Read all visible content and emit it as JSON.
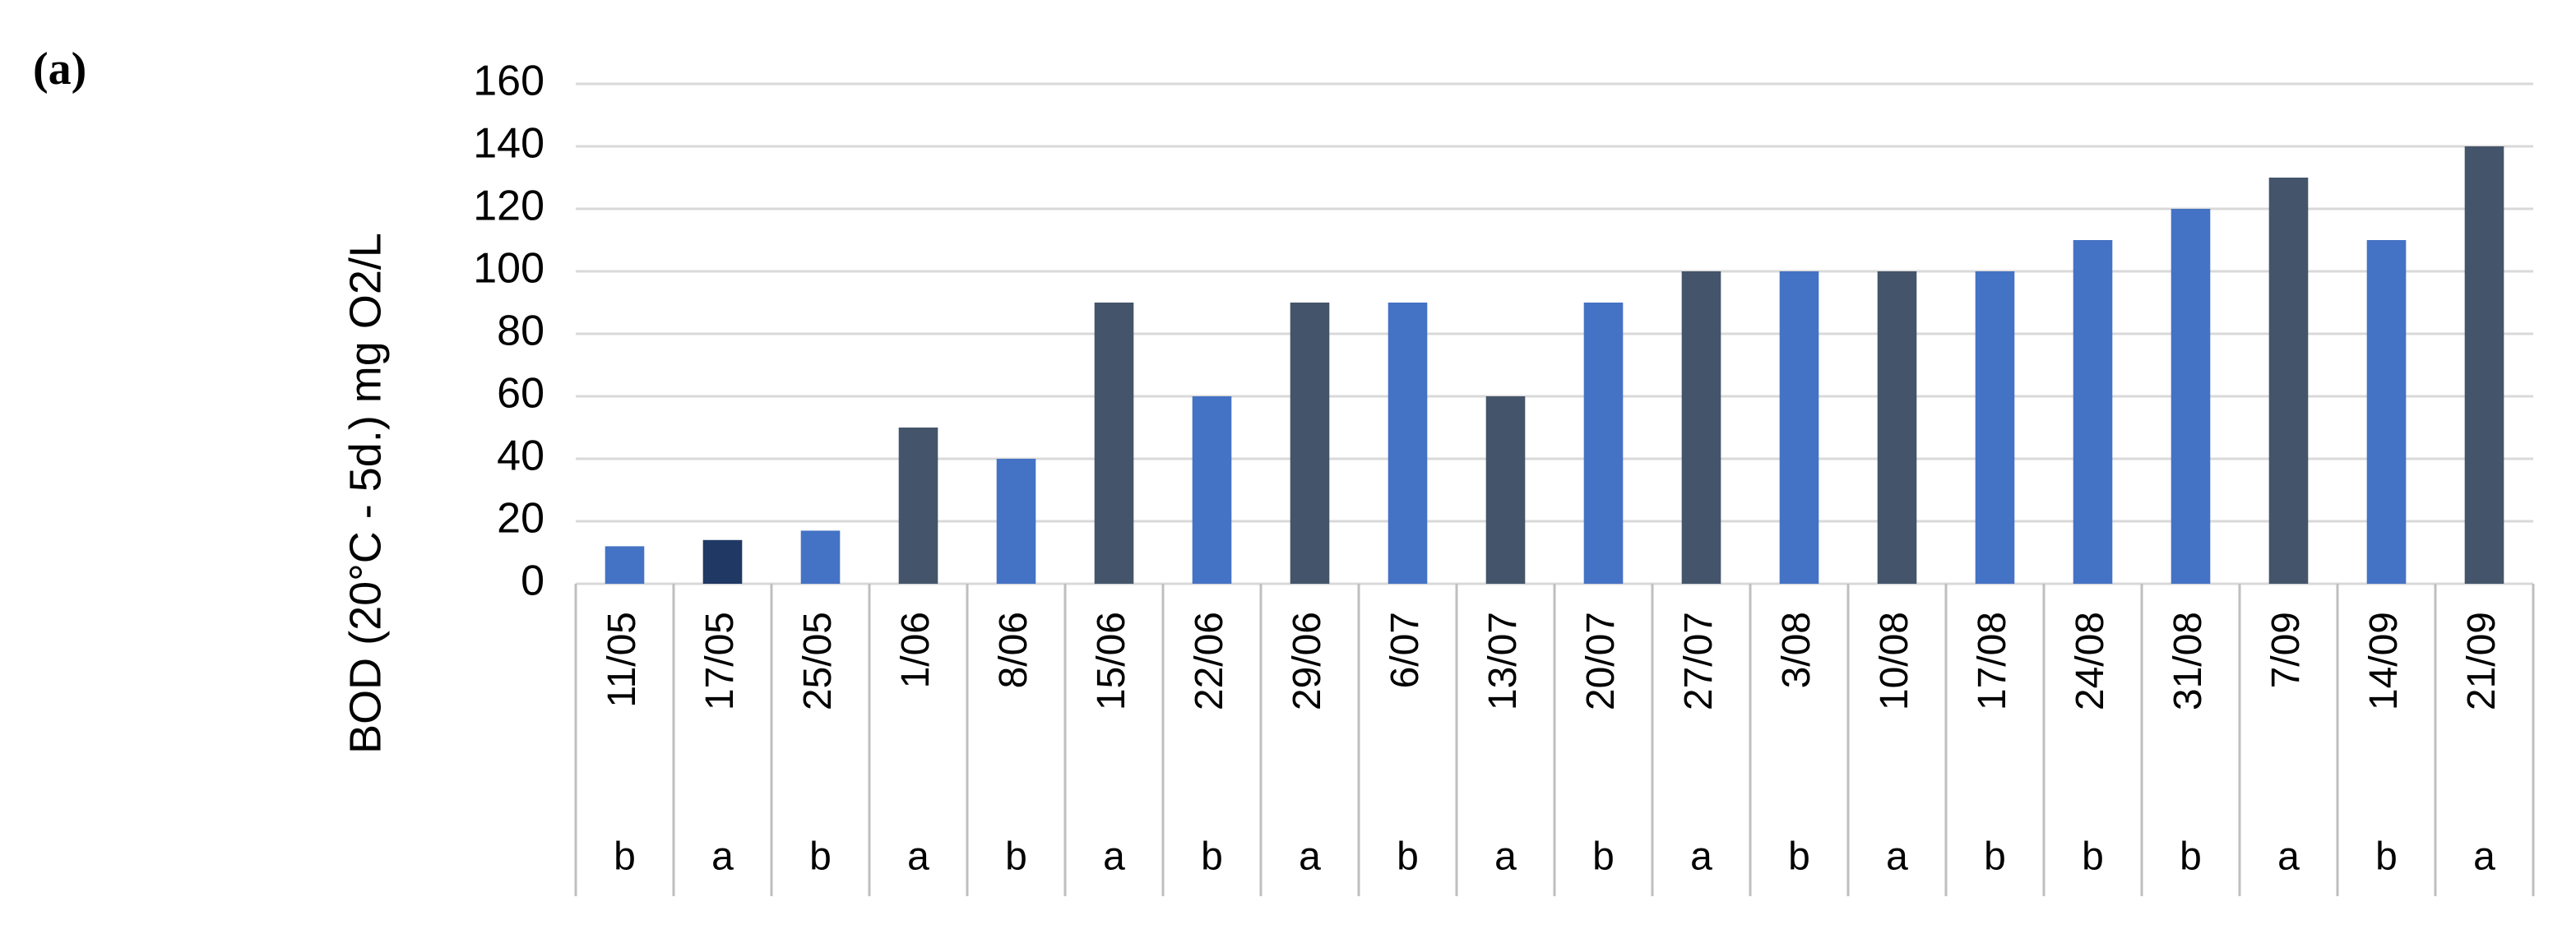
{
  "panel_label": "(a)",
  "chart_data": {
    "type": "bar",
    "y_label": "BOD (20°C - 5d.) mg O2/L",
    "categories": [
      "11/05",
      "17/05",
      "25/05",
      "1/06",
      "8/06",
      "15/06",
      "22/06",
      "29/06",
      "6/07",
      "13/07",
      "20/07",
      "27/07",
      "3/08",
      "10/08",
      "17/08",
      "24/08",
      "31/08",
      "7/09",
      "14/09",
      "21/09"
    ],
    "groups": [
      "b",
      "a",
      "b",
      "a",
      "b",
      "a",
      "b",
      "a",
      "b",
      "a",
      "b",
      "a",
      "b",
      "a",
      "b",
      "b",
      "b",
      "a",
      "b",
      "a"
    ],
    "values": [
      12,
      14,
      17,
      50,
      40,
      90,
      60,
      90,
      90,
      60,
      90,
      100,
      100,
      100,
      100,
      110,
      120,
      130,
      110,
      140
    ],
    "colors": [
      "#4472c4",
      "#203864",
      "#4472c4",
      "#44546a",
      "#4472c4",
      "#44546a",
      "#4472c4",
      "#44546a",
      "#4472c4",
      "#44546a",
      "#4472c4",
      "#44546a",
      "#4472c4",
      "#44546a",
      "#4472c4",
      "#4472c4",
      "#4472c4",
      "#44546a",
      "#4472c4",
      "#44546a"
    ],
    "ylim": [
      0,
      160
    ],
    "yticks": [
      0,
      20,
      40,
      60,
      80,
      100,
      120,
      140,
      160
    ],
    "grid": true
  }
}
